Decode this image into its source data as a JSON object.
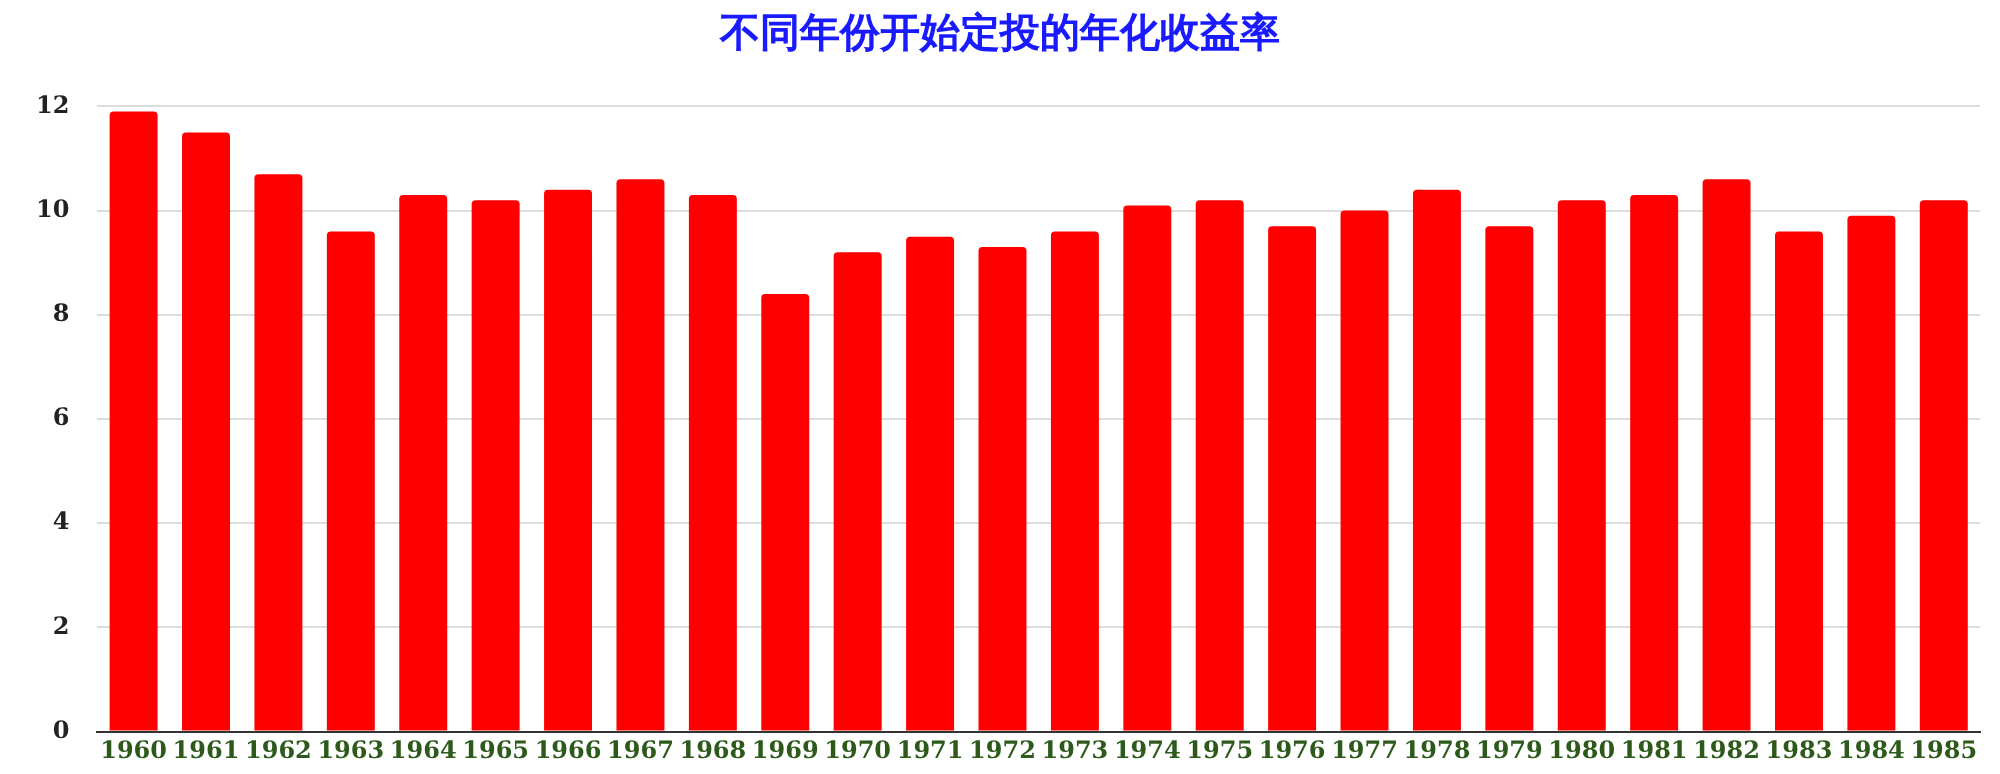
{
  "chart_data": {
    "type": "bar",
    "title": "不同年份开始定投的年化收益率",
    "categories": [
      "1960",
      "1961",
      "1962",
      "1963",
      "1964",
      "1965",
      "1966",
      "1967",
      "1968",
      "1969",
      "1970",
      "1971",
      "1972",
      "1973",
      "1974",
      "1975",
      "1976",
      "1977",
      "1978",
      "1979",
      "1980",
      "1981",
      "1982",
      "1983",
      "1984",
      "1985"
    ],
    "values": [
      11.9,
      11.5,
      10.7,
      9.6,
      10.3,
      10.2,
      10.4,
      10.6,
      10.3,
      8.4,
      9.2,
      9.5,
      9.3,
      9.6,
      10.1,
      10.2,
      9.7,
      10.0,
      10.4,
      9.7,
      10.2,
      10.3,
      10.6,
      9.6,
      9.9,
      10.2
    ],
    "color": "#ff0000",
    "ylim": [
      0,
      12
    ],
    "yticks": [
      0,
      2,
      4,
      6,
      8,
      10,
      12
    ],
    "grid": "y",
    "legend": false
  }
}
